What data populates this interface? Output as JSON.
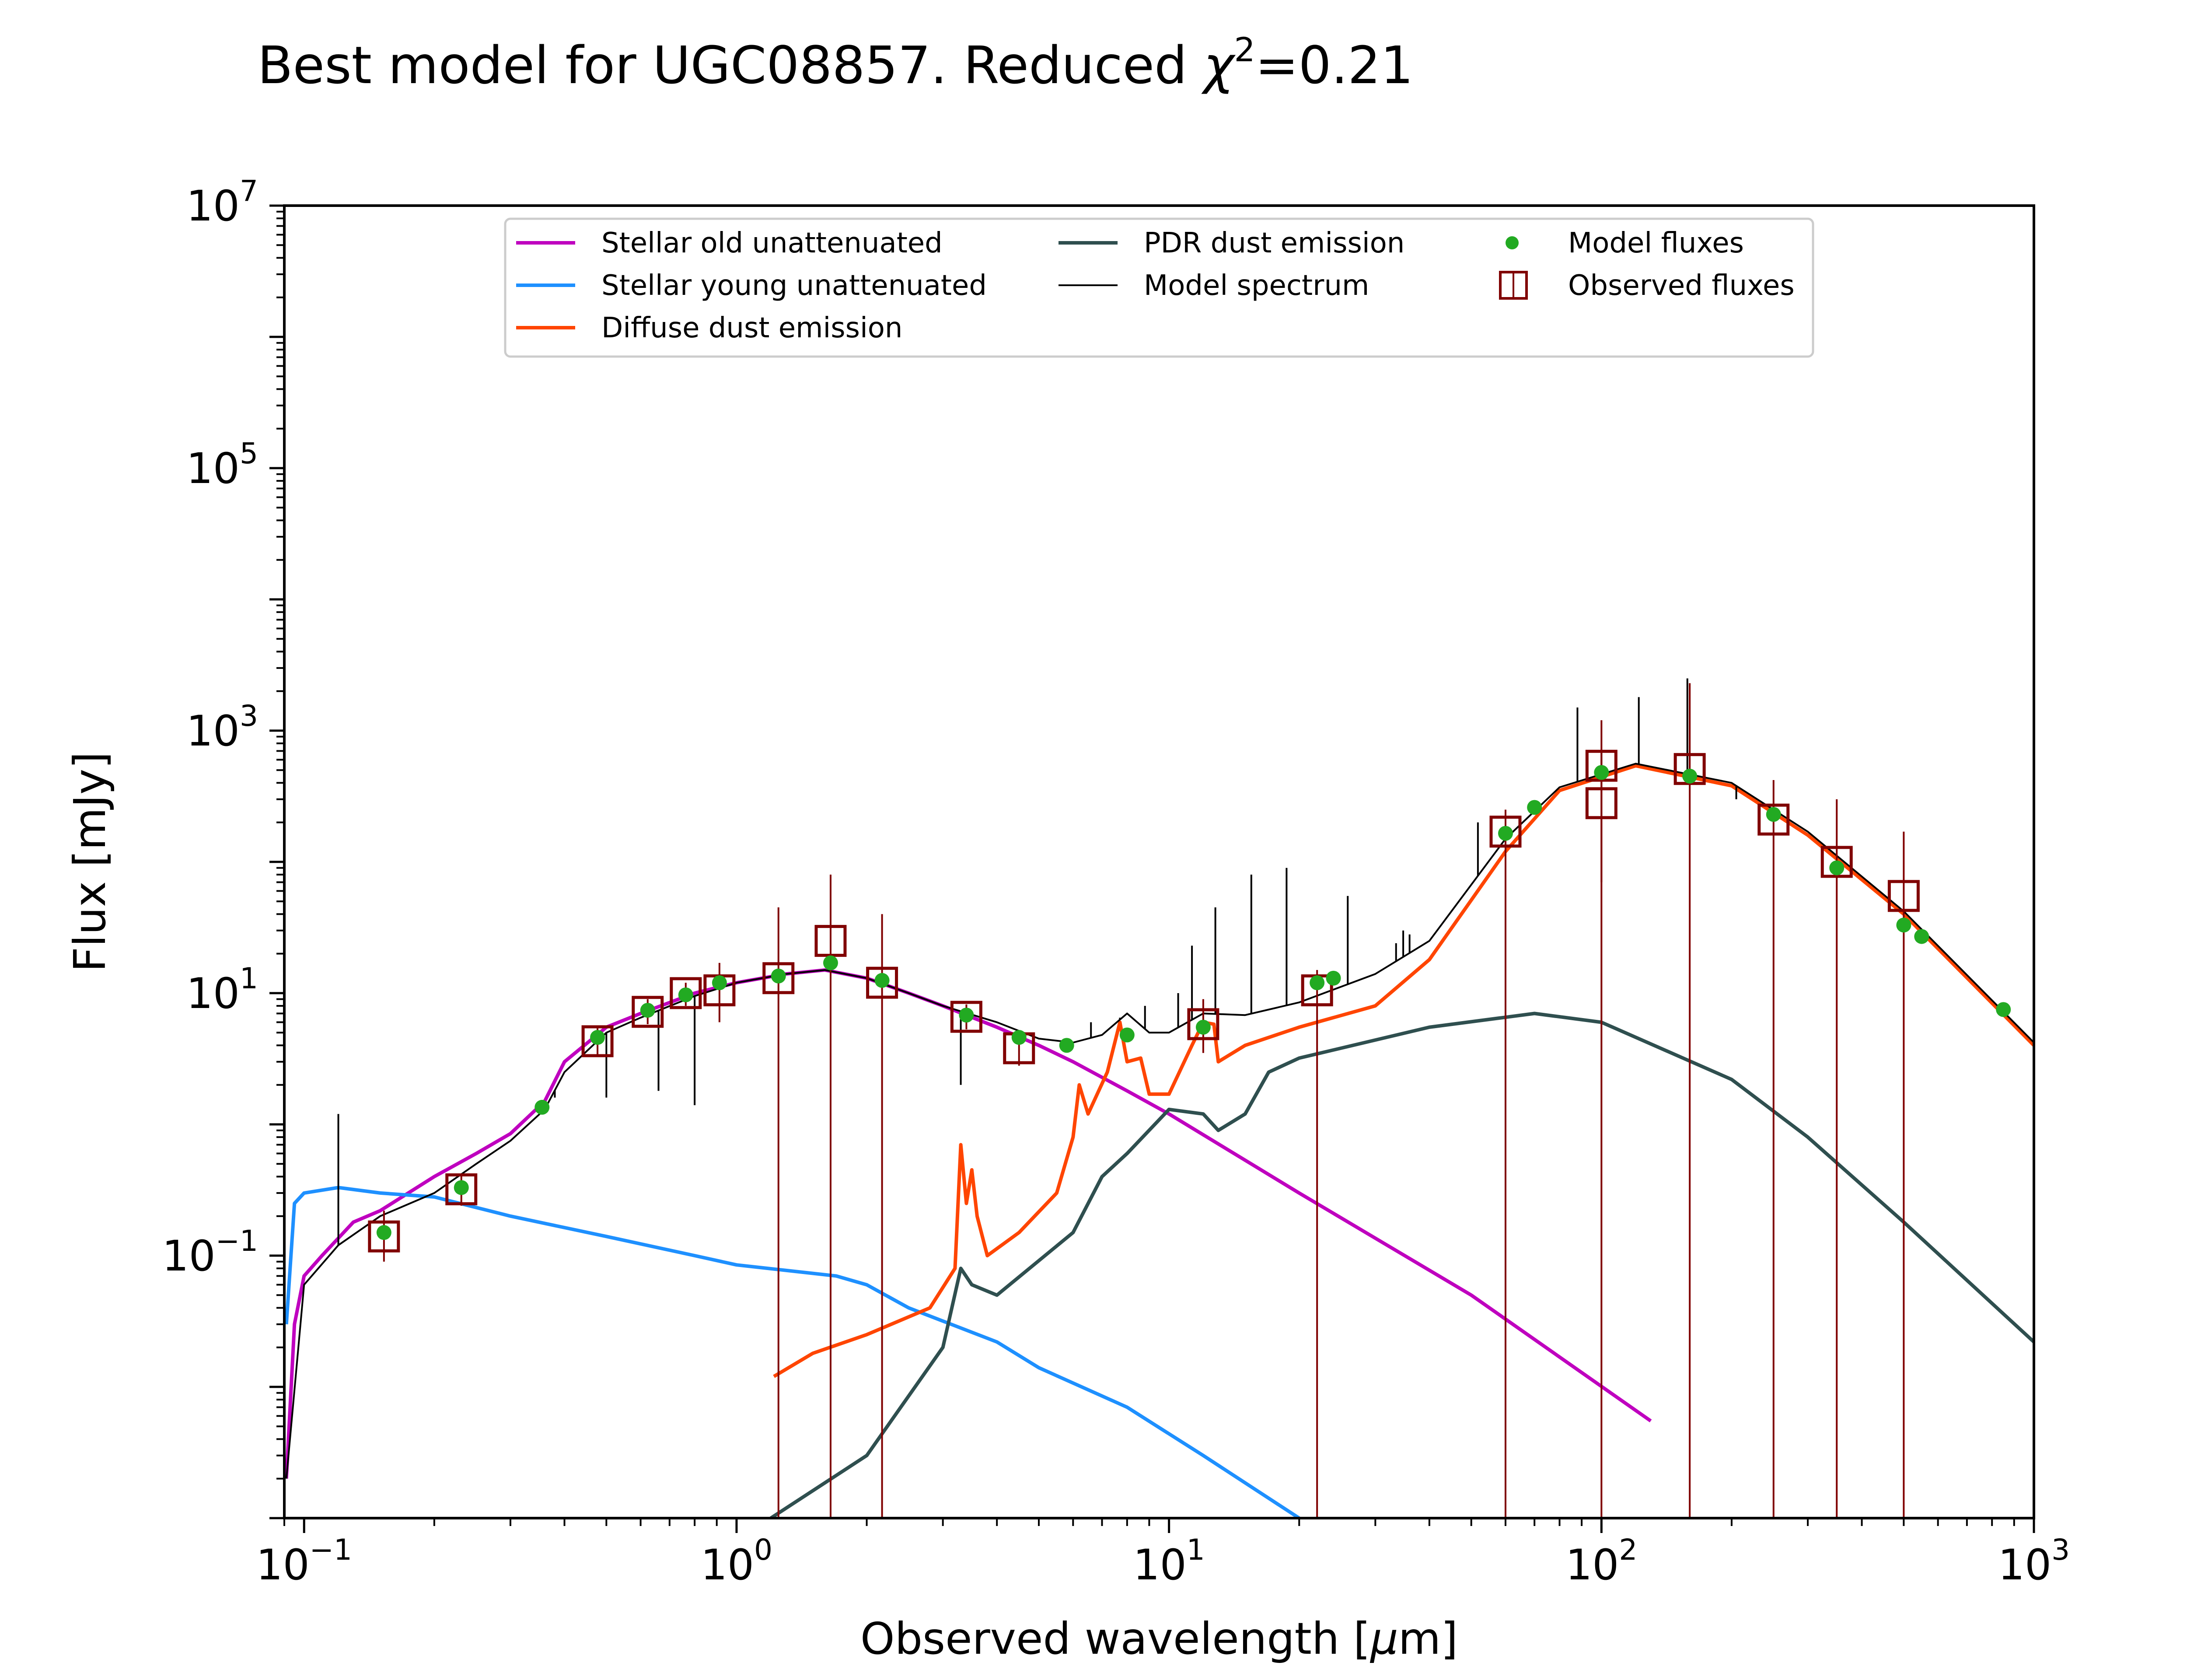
{
  "chart_data": {
    "type": "line",
    "title": "Best model for UGC08857. Reduced χ²=0.21",
    "title_parts": {
      "main": "Best model for UGC08857. Reduced ",
      "chi": "χ",
      "sup": "2",
      "value": "=0.21"
    },
    "xlabel": "Observed wavelength [μm]",
    "xlabel_parts": {
      "before": "Observed wavelength [",
      "mu": "μ",
      "after": "m]"
    },
    "ylabel": "Flux [mJy]",
    "xscale": "log",
    "yscale": "log",
    "xlim": [
      0.09,
      1000
    ],
    "ylim": [
      0.001,
      10000000
    ],
    "x_ticks": [
      {
        "base": "10",
        "exp": "−1",
        "value": 0.1
      },
      {
        "base": "10",
        "exp": "0",
        "value": 1
      },
      {
        "base": "10",
        "exp": "1",
        "value": 10
      },
      {
        "base": "10",
        "exp": "2",
        "value": 100
      },
      {
        "base": "10",
        "exp": "3",
        "value": 1000
      }
    ],
    "y_ticks": [
      {
        "base": "10",
        "exp": "−1",
        "value": 0.1
      },
      {
        "base": "10",
        "exp": "1",
        "value": 10
      },
      {
        "base": "10",
        "exp": "3",
        "value": 1000
      },
      {
        "base": "10",
        "exp": "5",
        "value": 100000
      },
      {
        "base": "10",
        "exp": "7",
        "value": 10000000
      }
    ],
    "grid": false,
    "legend_placement": "top-center",
    "series": [
      {
        "name": "Stellar old unattenuated",
        "color": "#bf00bf",
        "kind": "line",
        "points": [
          [
            0.091,
            0.002
          ],
          [
            0.095,
            0.03
          ],
          [
            0.1,
            0.07
          ],
          [
            0.11,
            0.1
          ],
          [
            0.13,
            0.18
          ],
          [
            0.15,
            0.22
          ],
          [
            0.2,
            0.4
          ],
          [
            0.25,
            0.6
          ],
          [
            0.3,
            0.85
          ],
          [
            0.36,
            1.5
          ],
          [
            0.4,
            3
          ],
          [
            0.5,
            5.5
          ],
          [
            0.6,
            7
          ],
          [
            0.8,
            10
          ],
          [
            1.0,
            12
          ],
          [
            1.3,
            14
          ],
          [
            1.6,
            15
          ],
          [
            2.0,
            13
          ],
          [
            2.5,
            10
          ],
          [
            3.0,
            8
          ],
          [
            4.0,
            5.5
          ],
          [
            5.0,
            4
          ],
          [
            6.0,
            3
          ],
          [
            8.0,
            1.8
          ],
          [
            10.0,
            1.2
          ],
          [
            20.0,
            0.3
          ],
          [
            50.0,
            0.05
          ],
          [
            130.0,
            0.0055
          ]
        ]
      },
      {
        "name": "Stellar young unattenuated",
        "color": "#1e90ff",
        "kind": "line",
        "points": [
          [
            0.091,
            0.03
          ],
          [
            0.095,
            0.25
          ],
          [
            0.1,
            0.3
          ],
          [
            0.12,
            0.33
          ],
          [
            0.15,
            0.3
          ],
          [
            0.2,
            0.28
          ],
          [
            0.3,
            0.2
          ],
          [
            0.5,
            0.14
          ],
          [
            0.8,
            0.1
          ],
          [
            1.0,
            0.085
          ],
          [
            1.7,
            0.07
          ],
          [
            2.0,
            0.06
          ],
          [
            2.5,
            0.04
          ],
          [
            4.0,
            0.022
          ],
          [
            5.0,
            0.014
          ],
          [
            8.0,
            0.007
          ],
          [
            12.0,
            0.003
          ],
          [
            20.0,
            0.001
          ]
        ]
      },
      {
        "name": "Diffuse dust emission",
        "color": "#ff4500",
        "kind": "line",
        "points": [
          [
            1.22,
            0.012
          ],
          [
            1.5,
            0.018
          ],
          [
            2.0,
            0.025
          ],
          [
            2.8,
            0.04
          ],
          [
            3.2,
            0.08
          ],
          [
            3.3,
            0.7
          ],
          [
            3.4,
            0.25
          ],
          [
            3.5,
            0.45
          ],
          [
            3.6,
            0.2
          ],
          [
            3.8,
            0.1
          ],
          [
            4.5,
            0.15
          ],
          [
            5.5,
            0.3
          ],
          [
            6.0,
            0.8
          ],
          [
            6.2,
            2
          ],
          [
            6.5,
            1.2
          ],
          [
            7.2,
            2.5
          ],
          [
            7.7,
            6
          ],
          [
            8.0,
            3
          ],
          [
            8.6,
            3.2
          ],
          [
            9.0,
            1.7
          ],
          [
            10.0,
            1.7
          ],
          [
            11.3,
            4
          ],
          [
            12.0,
            6
          ],
          [
            12.7,
            5.8
          ],
          [
            13.0,
            3
          ],
          [
            15.0,
            4
          ],
          [
            20.0,
            5.5
          ],
          [
            30.0,
            8
          ],
          [
            40.0,
            18
          ],
          [
            60.0,
            120
          ],
          [
            80.0,
            350
          ],
          [
            120.0,
            540
          ],
          [
            200.0,
            380
          ],
          [
            300.0,
            160
          ],
          [
            500.0,
            40
          ],
          [
            1000.0,
            4
          ]
        ]
      },
      {
        "name": "PDR dust emission",
        "color": "#2f4f4f",
        "kind": "line",
        "points": [
          [
            1.2,
            0.001
          ],
          [
            2.0,
            0.003
          ],
          [
            3.0,
            0.02
          ],
          [
            3.3,
            0.08
          ],
          [
            3.5,
            0.06
          ],
          [
            4.0,
            0.05
          ],
          [
            6.0,
            0.15
          ],
          [
            7.0,
            0.4
          ],
          [
            8.0,
            0.6
          ],
          [
            10.0,
            1.3
          ],
          [
            12.0,
            1.2
          ],
          [
            13.0,
            0.9
          ],
          [
            15.0,
            1.2
          ],
          [
            17.0,
            2.5
          ],
          [
            20.0,
            3.2
          ],
          [
            40.0,
            5.5
          ],
          [
            70.0,
            7
          ],
          [
            100.0,
            6
          ],
          [
            200.0,
            2.2
          ],
          [
            300.0,
            0.8
          ],
          [
            500.0,
            0.18
          ],
          [
            1000.0,
            0.022
          ]
        ]
      },
      {
        "name": "Model spectrum",
        "color": "#000000",
        "kind": "thin-line",
        "points": [
          [
            0.091,
            0.002
          ],
          [
            0.1,
            0.06
          ],
          [
            0.12,
            0.12
          ],
          [
            0.15,
            0.2
          ],
          [
            0.2,
            0.3
          ],
          [
            0.25,
            0.5
          ],
          [
            0.3,
            0.75
          ],
          [
            0.36,
            1.3
          ],
          [
            0.4,
            2.5
          ],
          [
            0.5,
            5
          ],
          [
            0.6,
            6.5
          ],
          [
            0.8,
            9.5
          ],
          [
            1.0,
            12
          ],
          [
            1.3,
            14
          ],
          [
            1.6,
            15
          ],
          [
            2.0,
            13
          ],
          [
            2.5,
            10
          ],
          [
            3.0,
            8
          ],
          [
            4.0,
            6
          ],
          [
            5.0,
            4.5
          ],
          [
            6.0,
            4.2
          ],
          [
            7.0,
            4.8
          ],
          [
            8.0,
            7
          ],
          [
            9.0,
            5
          ],
          [
            10.0,
            5
          ],
          [
            12.0,
            7
          ],
          [
            15.0,
            6.8
          ],
          [
            20.0,
            8.5
          ],
          [
            30.0,
            14
          ],
          [
            40.0,
            25
          ],
          [
            60.0,
            150
          ],
          [
            80.0,
            370
          ],
          [
            120.0,
            560
          ],
          [
            200.0,
            400
          ],
          [
            300.0,
            170
          ],
          [
            500.0,
            42
          ],
          [
            1000.0,
            4.2
          ]
        ],
        "spikes": [
          [
            0.12,
            1.2
          ],
          [
            0.38,
            1.6
          ],
          [
            0.5,
            1.6
          ],
          [
            0.66,
            1.8
          ],
          [
            0.8,
            1.4
          ],
          [
            3.3,
            2
          ],
          [
            6.6,
            6
          ],
          [
            7.7,
            6.5
          ],
          [
            8.8,
            8
          ],
          [
            10.5,
            10
          ],
          [
            11.3,
            23
          ],
          [
            12.8,
            45
          ],
          [
            15.5,
            80
          ],
          [
            18.7,
            90
          ],
          [
            25.9,
            55
          ],
          [
            33.5,
            24
          ],
          [
            34.8,
            30
          ],
          [
            36.0,
            28
          ],
          [
            51.8,
            200
          ],
          [
            57.0,
            120
          ],
          [
            88.0,
            1500
          ],
          [
            100.0,
            700
          ],
          [
            122.0,
            1800
          ],
          [
            158.0,
            2500
          ],
          [
            205.0,
            300
          ]
        ]
      }
    ],
    "model_fluxes": {
      "name": "Model fluxes",
      "color": "#22aa22",
      "points": [
        [
          0.153,
          0.15
        ],
        [
          0.231,
          0.33
        ],
        [
          0.355,
          1.35
        ],
        [
          0.477,
          4.6
        ],
        [
          0.623,
          7.4
        ],
        [
          0.763,
          9.7
        ],
        [
          0.913,
          12
        ],
        [
          1.25,
          13.5
        ],
        [
          1.65,
          17
        ],
        [
          2.17,
          12.5
        ],
        [
          3.4,
          6.8
        ],
        [
          4.5,
          4.6
        ],
        [
          5.8,
          4
        ],
        [
          8.0,
          4.8
        ],
        [
          12.0,
          5.5
        ],
        [
          22.0,
          12
        ],
        [
          24.0,
          13
        ],
        [
          60.0,
          165
        ],
        [
          70.0,
          260
        ],
        [
          100.0,
          480
        ],
        [
          160.0,
          450
        ],
        [
          250.0,
          230
        ],
        [
          350.0,
          90
        ],
        [
          500.0,
          33
        ],
        [
          550.0,
          27
        ],
        [
          850.0,
          7.5
        ]
      ]
    },
    "observed_fluxes": {
      "name": "Observed fluxes",
      "color": "#800000",
      "points": [
        {
          "x": 0.153,
          "y": 0.14,
          "lo": 0.09,
          "hi": 0.22
        },
        {
          "x": 0.231,
          "y": 0.32,
          "lo": 0.24,
          "hi": 0.42
        },
        {
          "x": 0.477,
          "y": 4.3,
          "lo": 3.4,
          "hi": 5.5
        },
        {
          "x": 0.623,
          "y": 7.2,
          "lo": 5.8,
          "hi": 9
        },
        {
          "x": 0.763,
          "y": 10,
          "lo": 8,
          "hi": 12
        },
        {
          "x": 0.913,
          "y": 10.5,
          "lo": 6,
          "hi": 17
        },
        {
          "x": 1.25,
          "y": 13,
          "lo": 0.001,
          "hi": 45
        },
        {
          "x": 1.65,
          "y": 25,
          "lo": 0.001,
          "hi": 80
        },
        {
          "x": 2.17,
          "y": 12,
          "lo": 0.001,
          "hi": 40
        },
        {
          "x": 3.4,
          "y": 6.6,
          "lo": 5.3,
          "hi": 8.2
        },
        {
          "x": 4.5,
          "y": 3.8,
          "lo": 2.8,
          "hi": 5
        },
        {
          "x": 12.0,
          "y": 5.8,
          "lo": 3.5,
          "hi": 9
        },
        {
          "x": 22.0,
          "y": 10.5,
          "lo": 0.001,
          "hi": 15
        },
        {
          "x": 60.0,
          "y": 170,
          "lo": 0.001,
          "hi": 250
        },
        {
          "x": 100.0,
          "y": 540,
          "lo": 0.001,
          "hi": 1200
        },
        {
          "x": 100.0,
          "y": 280,
          "lo": 70,
          "hi": 600
        },
        {
          "x": 160.0,
          "y": 510,
          "lo": 0.001,
          "hi": 2300
        },
        {
          "x": 250.0,
          "y": 210,
          "lo": 0.001,
          "hi": 420
        },
        {
          "x": 350.0,
          "y": 100,
          "lo": 0.001,
          "hi": 300
        },
        {
          "x": 500.0,
          "y": 55,
          "lo": 0.001,
          "hi": 170
        }
      ]
    },
    "legend": [
      {
        "label": "Stellar old unattenuated",
        "color": "#bf00bf",
        "marker": "line",
        "col": 0,
        "row": 0
      },
      {
        "label": "Stellar young unattenuated",
        "color": "#1e90ff",
        "marker": "line",
        "col": 0,
        "row": 1
      },
      {
        "label": "Diffuse dust emission",
        "color": "#ff4500",
        "marker": "line",
        "col": 0,
        "row": 2
      },
      {
        "label": "PDR dust emission",
        "color": "#2f4f4f",
        "marker": "line",
        "col": 1,
        "row": 0
      },
      {
        "label": "Model spectrum",
        "color": "#000000",
        "marker": "thin-line",
        "col": 1,
        "row": 1
      },
      {
        "label": "Model fluxes",
        "color": "#22aa22",
        "marker": "dot",
        "col": 2,
        "row": 0
      },
      {
        "label": "Observed fluxes",
        "color": "#800000",
        "marker": "square",
        "col": 2,
        "row": 1
      }
    ]
  }
}
